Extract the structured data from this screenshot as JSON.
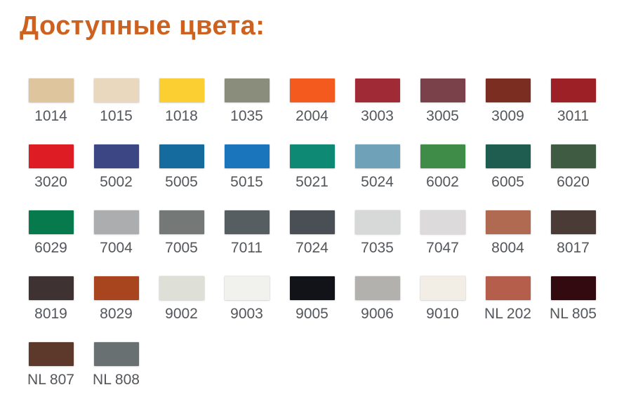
{
  "page": {
    "title": "Доступные цвета:",
    "title_color": "#cd6120",
    "background_color": "#ffffff",
    "label_color": "#53565a"
  },
  "swatches": [
    {
      "code": "1014",
      "color": "#dfc59e"
    },
    {
      "code": "1015",
      "color": "#e9d8be"
    },
    {
      "code": "1018",
      "color": "#fbce32"
    },
    {
      "code": "1035",
      "color": "#8a8d7b"
    },
    {
      "code": "2004",
      "color": "#f45a1e"
    },
    {
      "code": "3003",
      "color": "#a02a36"
    },
    {
      "code": "3005",
      "color": "#7a414b"
    },
    {
      "code": "3009",
      "color": "#7c2d22"
    },
    {
      "code": "3011",
      "color": "#9d2027"
    },
    {
      "code": "3020",
      "color": "#dd1c24"
    },
    {
      "code": "5002",
      "color": "#3d4684"
    },
    {
      "code": "5005",
      "color": "#156a9e"
    },
    {
      "code": "5015",
      "color": "#1b75bc"
    },
    {
      "code": "5021",
      "color": "#0e8a74"
    },
    {
      "code": "5024",
      "color": "#6fa2b8"
    },
    {
      "code": "6002",
      "color": "#3f8c48"
    },
    {
      "code": "6005",
      "color": "#1e5d4f"
    },
    {
      "code": "6020",
      "color": "#3f5b41"
    },
    {
      "code": "6029",
      "color": "#067a4c"
    },
    {
      "code": "7004",
      "color": "#abadae"
    },
    {
      "code": "7005",
      "color": "#747877"
    },
    {
      "code": "7011",
      "color": "#565e62"
    },
    {
      "code": "7024",
      "color": "#4a4e55"
    },
    {
      "code": "7035",
      "color": "#d6d9d7"
    },
    {
      "code": "7047",
      "color": "#dddadb"
    },
    {
      "code": "8004",
      "color": "#b06a52"
    },
    {
      "code": "8017",
      "color": "#4a3b36"
    },
    {
      "code": "8019",
      "color": "#3e3232"
    },
    {
      "code": "8029",
      "color": "#a8451f"
    },
    {
      "code": "9002",
      "color": "#dedfd6"
    },
    {
      "code": "9003",
      "color": "#f1f1ee"
    },
    {
      "code": "9005",
      "color": "#111318"
    },
    {
      "code": "9006",
      "color": "#b3b1ae"
    },
    {
      "code": "9010",
      "color": "#f2eee5"
    },
    {
      "code": "NL 202",
      "color": "#b45e4b"
    },
    {
      "code": "NL 805",
      "color": "#330a10"
    },
    {
      "code": "NL 807",
      "color": "#5c392a"
    },
    {
      "code": "NL 808",
      "color": "#697072"
    }
  ]
}
